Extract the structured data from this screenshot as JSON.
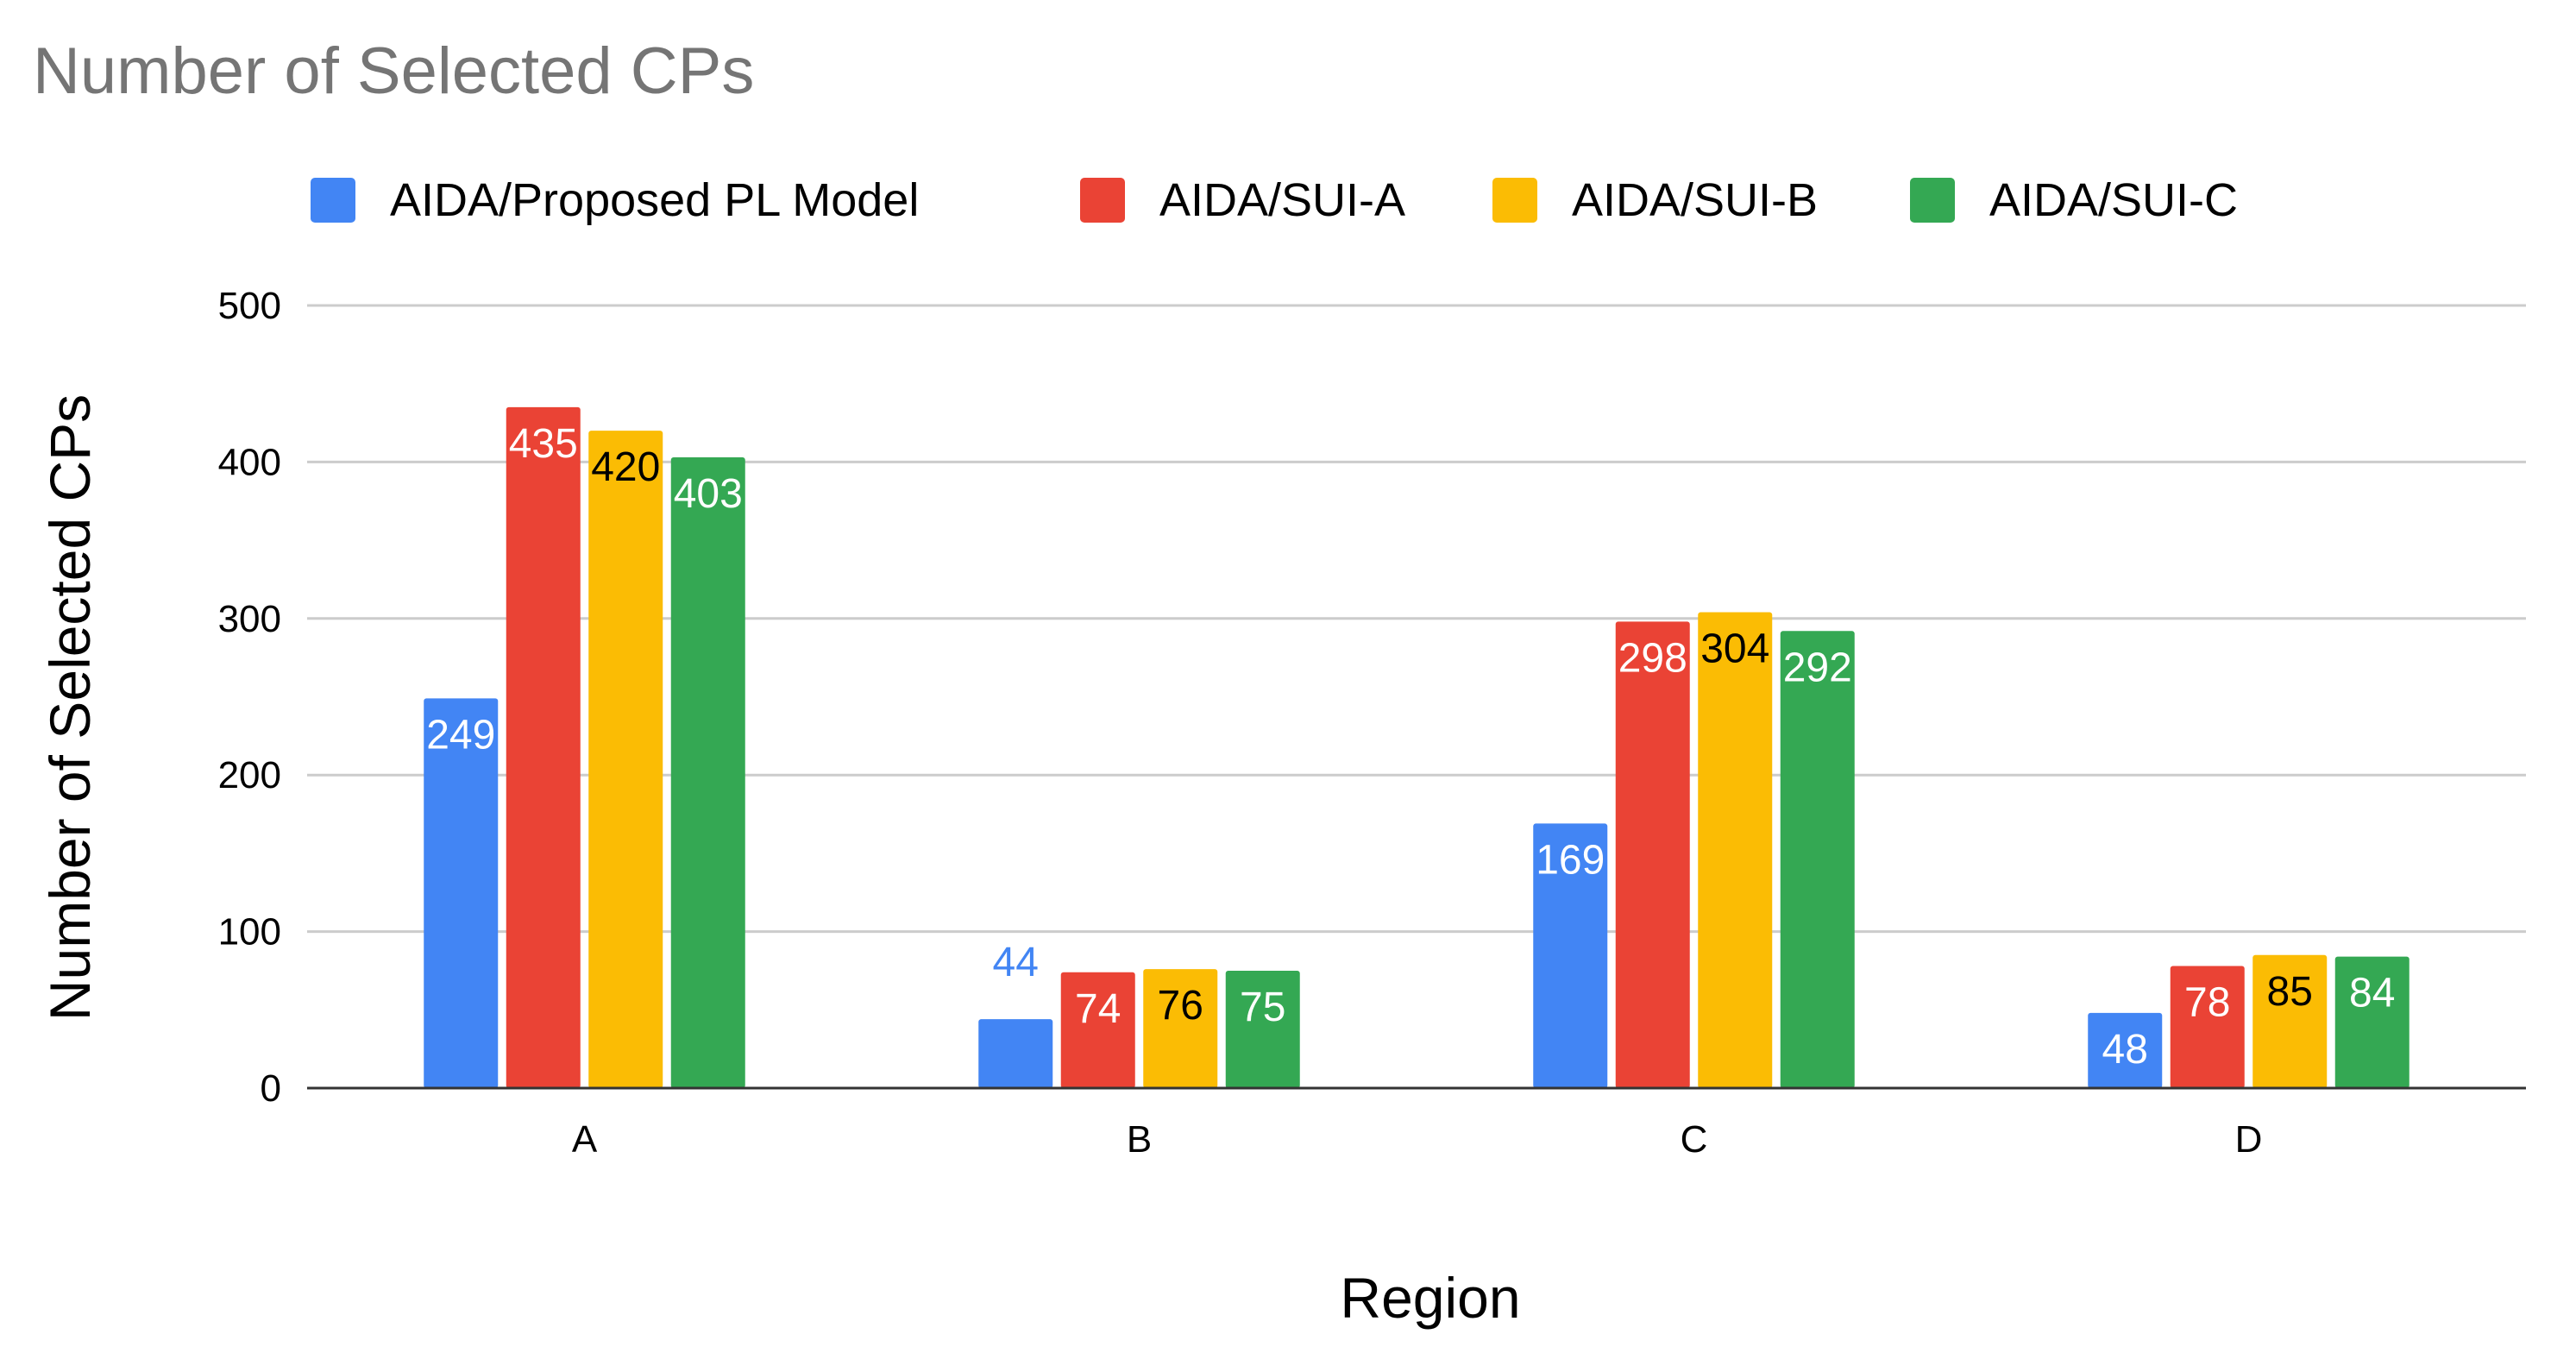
{
  "chart_data": {
    "type": "bar",
    "title": "Number of Selected CPs",
    "xlabel": "Region",
    "ylabel": "Number of Selected CPs",
    "categories": [
      "A",
      "B",
      "C",
      "D"
    ],
    "ylim": [
      0,
      500
    ],
    "yticks": [
      0,
      100,
      200,
      300,
      400,
      500
    ],
    "grid": true,
    "legend_position": "top",
    "series": [
      {
        "name": "AIDA/Proposed PL Model",
        "color": "#4285F4",
        "values": [
          249,
          44,
          169,
          48
        ]
      },
      {
        "name": "AIDA/SUI-A",
        "color": "#EA4335",
        "values": [
          435,
          74,
          298,
          78
        ]
      },
      {
        "name": "AIDA/SUI-B",
        "color": "#FBBC04",
        "values": [
          420,
          76,
          304,
          85
        ]
      },
      {
        "name": "AIDA/SUI-C",
        "color": "#34A853",
        "values": [
          403,
          75,
          292,
          84
        ]
      }
    ],
    "colors": {
      "title": "#757575",
      "axis_text": "#000000",
      "grid": "#cccccc",
      "baseline": "#333333",
      "label_on_dark": "#ffffff",
      "label_on_yellow": "#000000"
    }
  }
}
